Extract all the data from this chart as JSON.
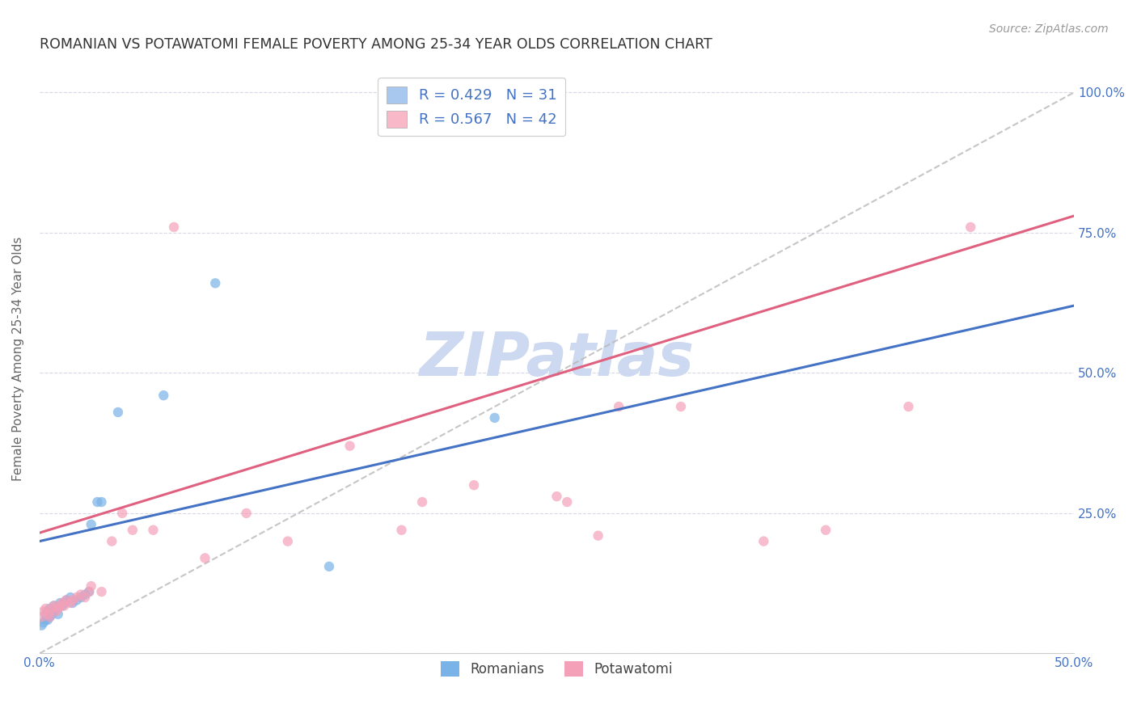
{
  "title": "ROMANIAN VS POTAWATOMI FEMALE POVERTY AMONG 25-34 YEAR OLDS CORRELATION CHART",
  "source": "Source: ZipAtlas.com",
  "ylabel": "Female Poverty Among 25-34 Year Olds",
  "xlim": [
    0.0,
    0.5
  ],
  "ylim": [
    0.0,
    1.05
  ],
  "xticks": [
    0.0,
    0.1,
    0.2,
    0.3,
    0.4,
    0.5
  ],
  "xticklabels": [
    "0.0%",
    "",
    "",
    "",
    "",
    "50.0%"
  ],
  "yticks": [
    0.0,
    0.25,
    0.5,
    0.75,
    1.0
  ],
  "yticklabels": [
    "",
    "25.0%",
    "50.0%",
    "75.0%",
    "100.0%"
  ],
  "legend_r_entries": [
    {
      "label": "R = 0.429",
      "n": "N = 31",
      "color": "#a8c8f0"
    },
    {
      "label": "R = 0.567",
      "n": "N = 42",
      "color": "#f8b8c8"
    }
  ],
  "romanians_x": [
    0.001,
    0.002,
    0.003,
    0.003,
    0.004,
    0.004,
    0.005,
    0.005,
    0.006,
    0.007,
    0.007,
    0.008,
    0.009,
    0.01,
    0.011,
    0.012,
    0.013,
    0.015,
    0.016,
    0.018,
    0.02,
    0.022,
    0.024,
    0.025,
    0.028,
    0.03,
    0.038,
    0.06,
    0.085,
    0.14,
    0.22
  ],
  "romanians_y": [
    0.05,
    0.055,
    0.06,
    0.07,
    0.06,
    0.075,
    0.065,
    0.08,
    0.07,
    0.075,
    0.085,
    0.08,
    0.07,
    0.09,
    0.085,
    0.09,
    0.095,
    0.1,
    0.09,
    0.095,
    0.1,
    0.105,
    0.11,
    0.23,
    0.27,
    0.27,
    0.43,
    0.46,
    0.66,
    0.155,
    0.42
  ],
  "potawatomi_x": [
    0.001,
    0.002,
    0.003,
    0.004,
    0.005,
    0.006,
    0.007,
    0.008,
    0.009,
    0.01,
    0.011,
    0.012,
    0.013,
    0.015,
    0.016,
    0.018,
    0.02,
    0.022,
    0.024,
    0.025,
    0.03,
    0.035,
    0.04,
    0.045,
    0.055,
    0.065,
    0.08,
    0.1,
    0.12,
    0.15,
    0.175,
    0.185,
    0.21,
    0.25,
    0.255,
    0.27,
    0.28,
    0.31,
    0.35,
    0.38,
    0.42,
    0.45
  ],
  "potawatomi_y": [
    0.065,
    0.075,
    0.08,
    0.07,
    0.065,
    0.08,
    0.085,
    0.075,
    0.08,
    0.085,
    0.09,
    0.085,
    0.095,
    0.09,
    0.095,
    0.1,
    0.105,
    0.1,
    0.11,
    0.12,
    0.11,
    0.2,
    0.25,
    0.22,
    0.22,
    0.76,
    0.17,
    0.25,
    0.2,
    0.37,
    0.22,
    0.27,
    0.3,
    0.28,
    0.27,
    0.21,
    0.44,
    0.44,
    0.2,
    0.22,
    0.44,
    0.76
  ],
  "romanian_color": "#7ab3e8",
  "potawatomi_color": "#f4a0b8",
  "romanian_line_color": "#4472c4",
  "potawatomi_line_color": "#e06080",
  "diagonal_color": "#b8b8b8",
  "bg_color": "#ffffff",
  "grid_color": "#d8d8e8",
  "marker_size": 80,
  "marker_alpha": 0.7,
  "title_color": "#333333",
  "axis_label_color": "#666666",
  "tick_color": "#4472c4",
  "watermark": "ZIPatlas",
  "watermark_color": "#ccd9f0",
  "bottom_legend": [
    "Romanians",
    "Potawatomi"
  ]
}
